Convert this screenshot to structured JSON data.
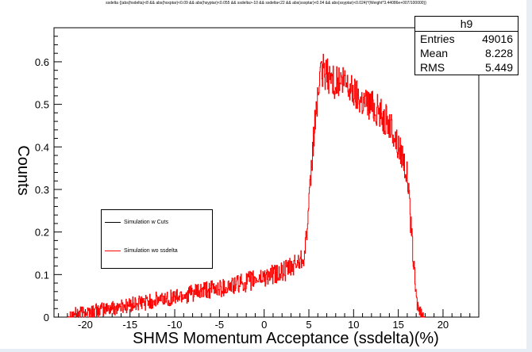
{
  "cut_string": "ssdelta {(abs(hsdelta)<8 && abs(hsxptar)<0.09 && abs(hsyptar)<0.055 && ssdelta>-10 && ssdelta<22 && abs(ssxptar)<0.04 && abs(ssyptar)<0.024)*(Weight*3.44086e+007/100000)}",
  "stats": {
    "title": "h9",
    "rows": [
      {
        "label": "Entries",
        "value": "49016"
      },
      {
        "label": "Mean",
        "value": "8.228"
      },
      {
        "label": "RMS",
        "value": "5.449"
      }
    ]
  },
  "legend": {
    "entries": [
      {
        "label": "Simulation w Cuts",
        "color": "#000000"
      },
      {
        "label": "Simulation wo ssdelta",
        "color": "#ff0000"
      }
    ]
  },
  "chart_data": {
    "type": "line",
    "title": "",
    "xlabel": "SHMS Momentum Acceptance (ssdelta)(%)",
    "ylabel": "Counts",
    "xlim": [
      -23.5,
      24.0
    ],
    "ylim": [
      0,
      0.68
    ],
    "x_ticks": [
      -20,
      -15,
      -10,
      -5,
      0,
      5,
      10,
      15,
      20
    ],
    "y_ticks": [
      0,
      0.1,
      0.2,
      0.3,
      0.4,
      0.5,
      0.6
    ],
    "y_tick_labels": [
      "0",
      "0.1",
      "0.2",
      "0.3",
      "0.4",
      "0.5",
      "0.6"
    ],
    "grid": false,
    "legend_position": "left",
    "series": [
      {
        "name": "Simulation wo ssdelta",
        "color": "#ff0000",
        "x": [
          -22,
          -20,
          -18,
          -16,
          -14,
          -12,
          -10,
          -8,
          -6,
          -4,
          -2,
          0,
          2,
          3,
          4,
          4.5,
          5,
          5.5,
          6,
          6.5,
          7,
          7.5,
          8,
          9,
          10,
          11,
          12,
          13,
          14,
          14.5,
          15,
          15.5,
          16,
          16.5,
          17,
          17.5,
          18
        ],
        "y": [
          0.005,
          0.012,
          0.018,
          0.025,
          0.032,
          0.04,
          0.048,
          0.056,
          0.064,
          0.072,
          0.082,
          0.095,
          0.105,
          0.115,
          0.135,
          0.15,
          0.26,
          0.42,
          0.53,
          0.58,
          0.57,
          0.56,
          0.55,
          0.55,
          0.53,
          0.51,
          0.5,
          0.48,
          0.45,
          0.43,
          0.4,
          0.38,
          0.33,
          0.18,
          0.04,
          0.005,
          0.0
        ]
      }
    ]
  }
}
